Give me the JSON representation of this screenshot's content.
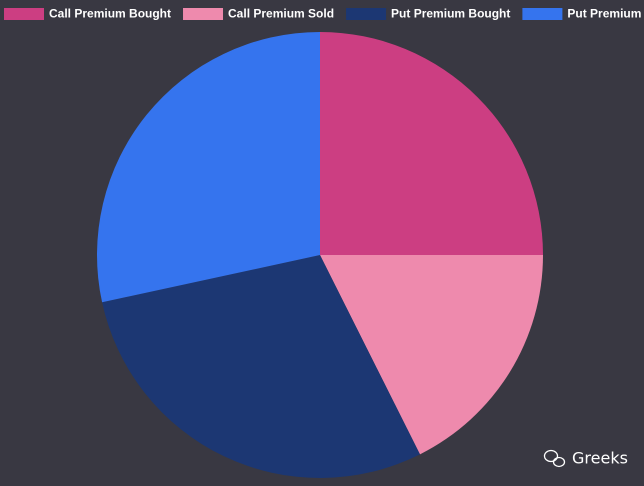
{
  "chart_data": {
    "type": "pie",
    "categories": [
      "Call Premium Bought",
      "Call Premium Sold",
      "Put Premium Bought",
      "Put Premium Sold"
    ],
    "values": [
      25,
      17.6,
      29,
      28.4
    ],
    "colors": [
      "#cc3e82",
      "#ee8aad",
      "#1c3773",
      "#3574ee"
    ],
    "legend": "top"
  },
  "watermark": "Greeks"
}
